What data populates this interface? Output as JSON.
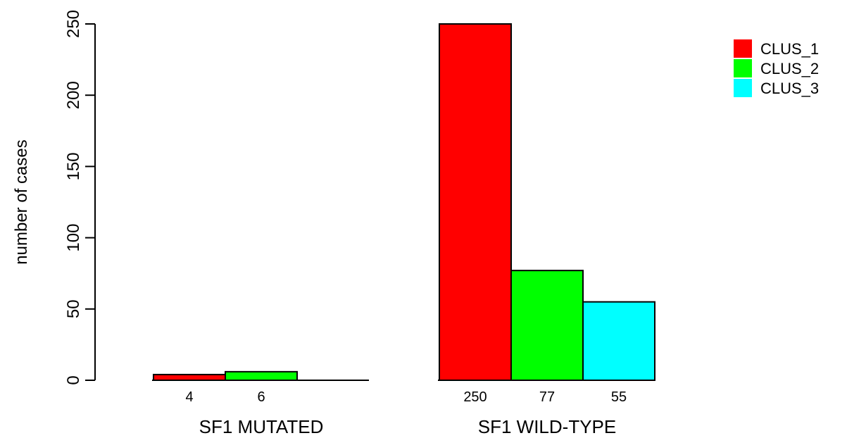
{
  "chart_data": {
    "type": "bar",
    "title": "",
    "xlabel": "",
    "ylabel": "number of cases",
    "ylim": [
      0,
      250
    ],
    "yticks": [
      0,
      50,
      100,
      150,
      200,
      250
    ],
    "grid": false,
    "legend_position": "top-right",
    "groups": [
      {
        "label": "SF1 MUTATED",
        "values": [
          4,
          6,
          0
        ],
        "value_labels": [
          "4",
          "6",
          ""
        ]
      },
      {
        "label": "SF1 WILD-TYPE",
        "values": [
          250,
          77,
          55
        ],
        "value_labels": [
          "250",
          "77",
          "55"
        ]
      }
    ],
    "series": [
      {
        "name": "CLUS_1",
        "color": "#ff0000"
      },
      {
        "name": "CLUS_2",
        "color": "#00ff00"
      },
      {
        "name": "CLUS_3",
        "color": "#00ffff"
      }
    ]
  }
}
